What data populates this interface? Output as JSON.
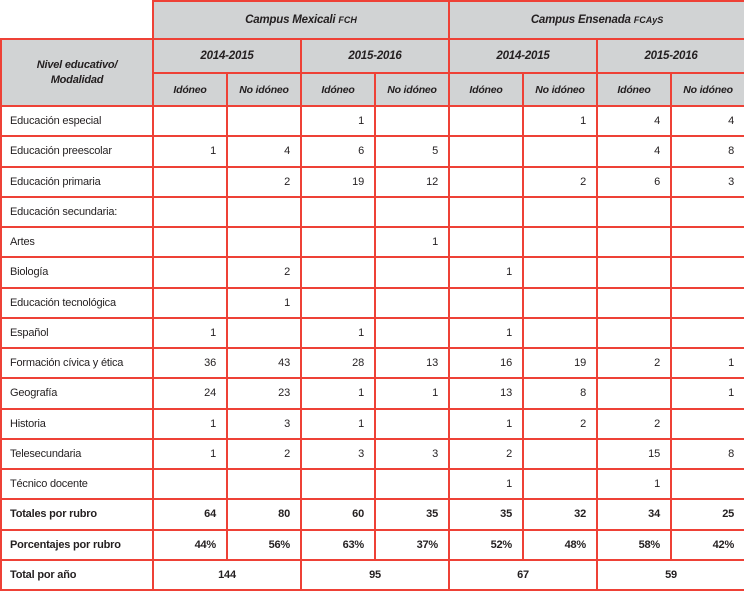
{
  "colors": {
    "border_red": "#ee4136",
    "header_bg": "#d1d3d4",
    "text": "#231f20"
  },
  "header": {
    "corner_label_line1": "Nivel educativo/",
    "corner_label_line2": "Modalidad",
    "campuses": [
      {
        "name": "Campus Mexicali",
        "acronym": "FCH"
      },
      {
        "name": "Campus Ensenada",
        "acronym": "FCAyS"
      }
    ],
    "years": [
      "2014-2015",
      "2015-2016",
      "2014-2015",
      "2015-2016"
    ],
    "subheaders": [
      "Idóneo",
      "No idóneo",
      "Idóneo",
      "No idóneo",
      "Idóneo",
      "No idóneo",
      "Idóneo",
      "No idóneo"
    ]
  },
  "body": {
    "rows": [
      {
        "label": "Educación especial",
        "values": [
          "",
          "",
          "1",
          "",
          "",
          "1",
          "4",
          "4"
        ]
      },
      {
        "label": "Educación preescolar",
        "values": [
          "1",
          "4",
          "6",
          "5",
          "",
          "",
          "4",
          "8"
        ]
      },
      {
        "label": "Educación primaria",
        "values": [
          "",
          "2",
          "19",
          "12",
          "",
          "2",
          "6",
          "3"
        ]
      },
      {
        "label": "Educación secundaria:",
        "values": [
          "",
          "",
          "",
          "",
          "",
          "",
          "",
          ""
        ]
      },
      {
        "label": "Artes",
        "values": [
          "",
          "",
          "",
          "1",
          "",
          "",
          "",
          ""
        ]
      },
      {
        "label": "Biología",
        "values": [
          "",
          "2",
          "",
          "",
          "1",
          "",
          "",
          ""
        ]
      },
      {
        "label": "Educación tecnológica",
        "values": [
          "",
          "1",
          "",
          "",
          "",
          "",
          "",
          ""
        ]
      },
      {
        "label": "Español",
        "values": [
          "1",
          "",
          "1",
          "",
          "1",
          "",
          "",
          ""
        ]
      },
      {
        "label": "Formación cívica y ética",
        "values": [
          "36",
          "43",
          "28",
          "13",
          "16",
          "19",
          "2",
          "1"
        ]
      },
      {
        "label": "Geografía",
        "values": [
          "24",
          "23",
          "1",
          "1",
          "13",
          "8",
          "",
          "1"
        ]
      },
      {
        "label": "Historia",
        "values": [
          "1",
          "3",
          "1",
          "",
          "1",
          "2",
          "2",
          ""
        ]
      },
      {
        "label": "Telesecundaria",
        "values": [
          "1",
          "2",
          "3",
          "3",
          "2",
          "",
          "15",
          "8"
        ]
      },
      {
        "label": "Técnico docente",
        "values": [
          "",
          "",
          "",
          "",
          "1",
          "",
          "1",
          ""
        ]
      }
    ],
    "totals": {
      "label": "Totales por rubro",
      "values": [
        "64",
        "80",
        "60",
        "35",
        "35",
        "32",
        "34",
        "25"
      ]
    },
    "percentages": {
      "label": "Porcentajes por rubro",
      "values": [
        "44%",
        "56%",
        "63%",
        "37%",
        "52%",
        "48%",
        "58%",
        "42%"
      ]
    },
    "year_totals": {
      "label": "Total por año",
      "values": [
        "144",
        "95",
        "67",
        "59"
      ]
    }
  }
}
